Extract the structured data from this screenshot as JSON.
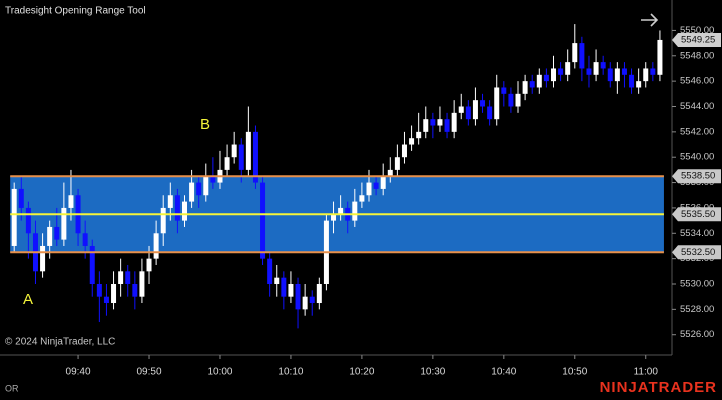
{
  "chart_data": {
    "type": "candlestick",
    "title": "Tradesight Opening Range Tool",
    "copyright": "© 2024 NinjaTrader, LLC",
    "footer_label": "OR",
    "logo": "NINJATRADER",
    "annotations": [
      "A",
      "B"
    ],
    "up_color": "#ffffff",
    "down_color": "#1010ff",
    "x": [
      571,
      572,
      573,
      574,
      575,
      576,
      577,
      578,
      579,
      580,
      581,
      582,
      583,
      584,
      585,
      586,
      587,
      588,
      589,
      590,
      591,
      592,
      593,
      594,
      595,
      596,
      597,
      598,
      599,
      600,
      601,
      602,
      603,
      604,
      605,
      606,
      607,
      608,
      609,
      610,
      611,
      612,
      613,
      614,
      615,
      616,
      617,
      618,
      619,
      620,
      621,
      622,
      623,
      624,
      625,
      626,
      627,
      628,
      629,
      630,
      631,
      632,
      633,
      634,
      635,
      636,
      637,
      638,
      639,
      640,
      641,
      642,
      643,
      644,
      645,
      646,
      647,
      648,
      649,
      650,
      651,
      652,
      653,
      654,
      655,
      656,
      657,
      658,
      659,
      660,
      661,
      662
    ],
    "open": [
      5533,
      5537.5,
      5536,
      5534,
      5531,
      5533,
      5534.5,
      5533.5,
      5536,
      5537,
      5534,
      5533,
      5530,
      5529,
      5528.5,
      5530,
      5531,
      5530,
      5529,
      5531,
      5532,
      5534,
      5536,
      5537,
      5535,
      5536.5,
      5538,
      5537,
      5538.5,
      5538,
      5539,
      5540,
      5541,
      5539,
      5542,
      5538,
      5532,
      5530,
      5530.5,
      5529,
      5530,
      5528,
      5529,
      5528.5,
      5530,
      5535,
      5535.5,
      5536,
      5535,
      5536.5,
      5537,
      5538,
      5537.5,
      5538.5,
      5539,
      5540,
      5541,
      5541.5,
      5542,
      5543,
      5542.5,
      5543,
      5542,
      5543.5,
      5544,
      5543,
      5544.5,
      5544,
      5543,
      5545.5,
      5545,
      5544,
      5545,
      5546,
      5545.5,
      5546.5,
      5546,
      5547,
      5546.5,
      5547.5,
      5549,
      5547,
      5546.5,
      5547.5,
      5547,
      5546,
      5547,
      5546.5,
      5545.5,
      5546,
      5547,
      5546.5
    ],
    "high": [
      5538,
      5538.5,
      5536.5,
      5535,
      5534,
      5535,
      5536,
      5538,
      5539,
      5537.5,
      5535,
      5533.5,
      5531,
      5530,
      5531,
      5532,
      5531.5,
      5531,
      5532,
      5533,
      5535,
      5537,
      5538,
      5537.5,
      5537,
      5539,
      5538.5,
      5539.5,
      5540,
      5540.5,
      5541,
      5542,
      5541.5,
      5544,
      5542.5,
      5538.5,
      5532.5,
      5531.5,
      5531,
      5531,
      5530.5,
      5530,
      5529.5,
      5530.5,
      5535.5,
      5536.5,
      5537,
      5536.5,
      5537.5,
      5538,
      5539,
      5538.5,
      5539.5,
      5540,
      5541,
      5542,
      5542.5,
      5543.5,
      5544,
      5543.5,
      5544,
      5543.5,
      5544.5,
      5545,
      5544.5,
      5545.5,
      5545,
      5544.5,
      5546.5,
      5546,
      5545.5,
      5546,
      5546.5,
      5546.5,
      5547,
      5547,
      5548,
      5547.5,
      5548.5,
      5550.5,
      5549.5,
      5548,
      5548.5,
      5548,
      5547.5,
      5547.5,
      5547.5,
      5547,
      5547,
      5547.5,
      5547.5,
      5550
    ],
    "low": [
      5532.5,
      5535,
      5532,
      5530,
      5530.5,
      5532,
      5533,
      5533,
      5535,
      5533,
      5532,
      5529,
      5527,
      5527.5,
      5528,
      5529,
      5529,
      5528,
      5528.5,
      5530,
      5531.5,
      5533,
      5535,
      5534,
      5534.5,
      5536,
      5536,
      5536.5,
      5537.5,
      5537.5,
      5538.5,
      5539.5,
      5538,
      5538.5,
      5537.5,
      5531.5,
      5529,
      5529,
      5528,
      5528.5,
      5526.5,
      5527.5,
      5527.5,
      5528,
      5529.5,
      5534,
      5535,
      5534,
      5534.5,
      5536,
      5536.5,
      5537,
      5537,
      5538,
      5538.5,
      5539.5,
      5540.5,
      5541,
      5541.5,
      5541.5,
      5542,
      5541.5,
      5541.5,
      5543,
      5542.5,
      5542.5,
      5543.5,
      5542.5,
      5542.5,
      5544,
      5543.5,
      5543.5,
      5544.5,
      5545,
      5545,
      5545.5,
      5545.5,
      5546,
      5546,
      5547,
      5546,
      5545.5,
      5546,
      5546.5,
      5545.5,
      5545,
      5545.5,
      5545,
      5545,
      5545.5,
      5546,
      5546
    ],
    "close": [
      5537.5,
      5536,
      5534,
      5531,
      5533,
      5534.5,
      5533.5,
      5536,
      5537,
      5534,
      5533,
      5530,
      5529,
      5528.5,
      5530,
      5531,
      5530,
      5529,
      5531,
      5532,
      5534,
      5536,
      5537,
      5535,
      5536.5,
      5538,
      5537,
      5538.5,
      5538,
      5539,
      5540,
      5541,
      5539,
      5542,
      5538,
      5532,
      5530,
      5530.5,
      5529,
      5530,
      5528,
      5529,
      5528.5,
      5530,
      5535,
      5535.5,
      5536,
      5535,
      5536.5,
      5537,
      5538,
      5537.5,
      5538.5,
      5539,
      5540,
      5541,
      5541.5,
      5542,
      5543,
      5542.5,
      5543,
      5542,
      5543.5,
      5544,
      5543,
      5544.5,
      5544,
      5543,
      5545.5,
      5545,
      5544,
      5545,
      5546,
      5545.5,
      5546.5,
      5546,
      5547,
      5546.5,
      5547.5,
      5549,
      5547,
      5546.5,
      5547.5,
      5547,
      5546,
      5547,
      5546.5,
      5545.5,
      5546,
      5547,
      5546.5,
      5549.25
    ],
    "xlim": [
      569.0,
      663.7
    ],
    "xticks": [
      {
        "value": 580,
        "label": "09:40"
      },
      {
        "value": 590,
        "label": "09:50"
      },
      {
        "value": 600,
        "label": "10:00"
      },
      {
        "value": 610,
        "label": "10:10"
      },
      {
        "value": 620,
        "label": "10:20"
      },
      {
        "value": 630,
        "label": "10:30"
      },
      {
        "value": 640,
        "label": "10:40"
      },
      {
        "value": 650,
        "label": "10:50"
      },
      {
        "value": 660,
        "label": "11:00"
      }
    ],
    "ylim": [
      5524.4,
      5552.4
    ],
    "yticks": [
      {
        "value": 5526,
        "label": "5526.00"
      },
      {
        "value": 5528,
        "label": "5528.00"
      },
      {
        "value": 5530,
        "label": "5530.00"
      },
      {
        "value": 5532,
        "label": "5532.00"
      },
      {
        "value": 5534,
        "label": "5534.00"
      },
      {
        "value": 5536,
        "label": "5536.00"
      },
      {
        "value": 5538,
        "label": "5538.00"
      },
      {
        "value": 5540,
        "label": "5540.00"
      },
      {
        "value": 5542,
        "label": "5542.00"
      },
      {
        "value": 5544,
        "label": "5544.00"
      },
      {
        "value": 5546,
        "label": "5546.00"
      },
      {
        "value": 5548,
        "label": "5548.00"
      },
      {
        "value": 5550,
        "label": "5550.00"
      }
    ],
    "range": {
      "high": {
        "value": 5538.5,
        "label": "5538.50",
        "color": "#e8904a"
      },
      "mid": {
        "value": 5535.5,
        "label": "5535.50",
        "color": "#f5f53a"
      },
      "low": {
        "value": 5532.5,
        "label": "5532.50",
        "color": "#e8904a"
      },
      "fill": "#1c6bc2"
    },
    "last_price": {
      "value": 5549.25,
      "label": "5549.25"
    }
  }
}
